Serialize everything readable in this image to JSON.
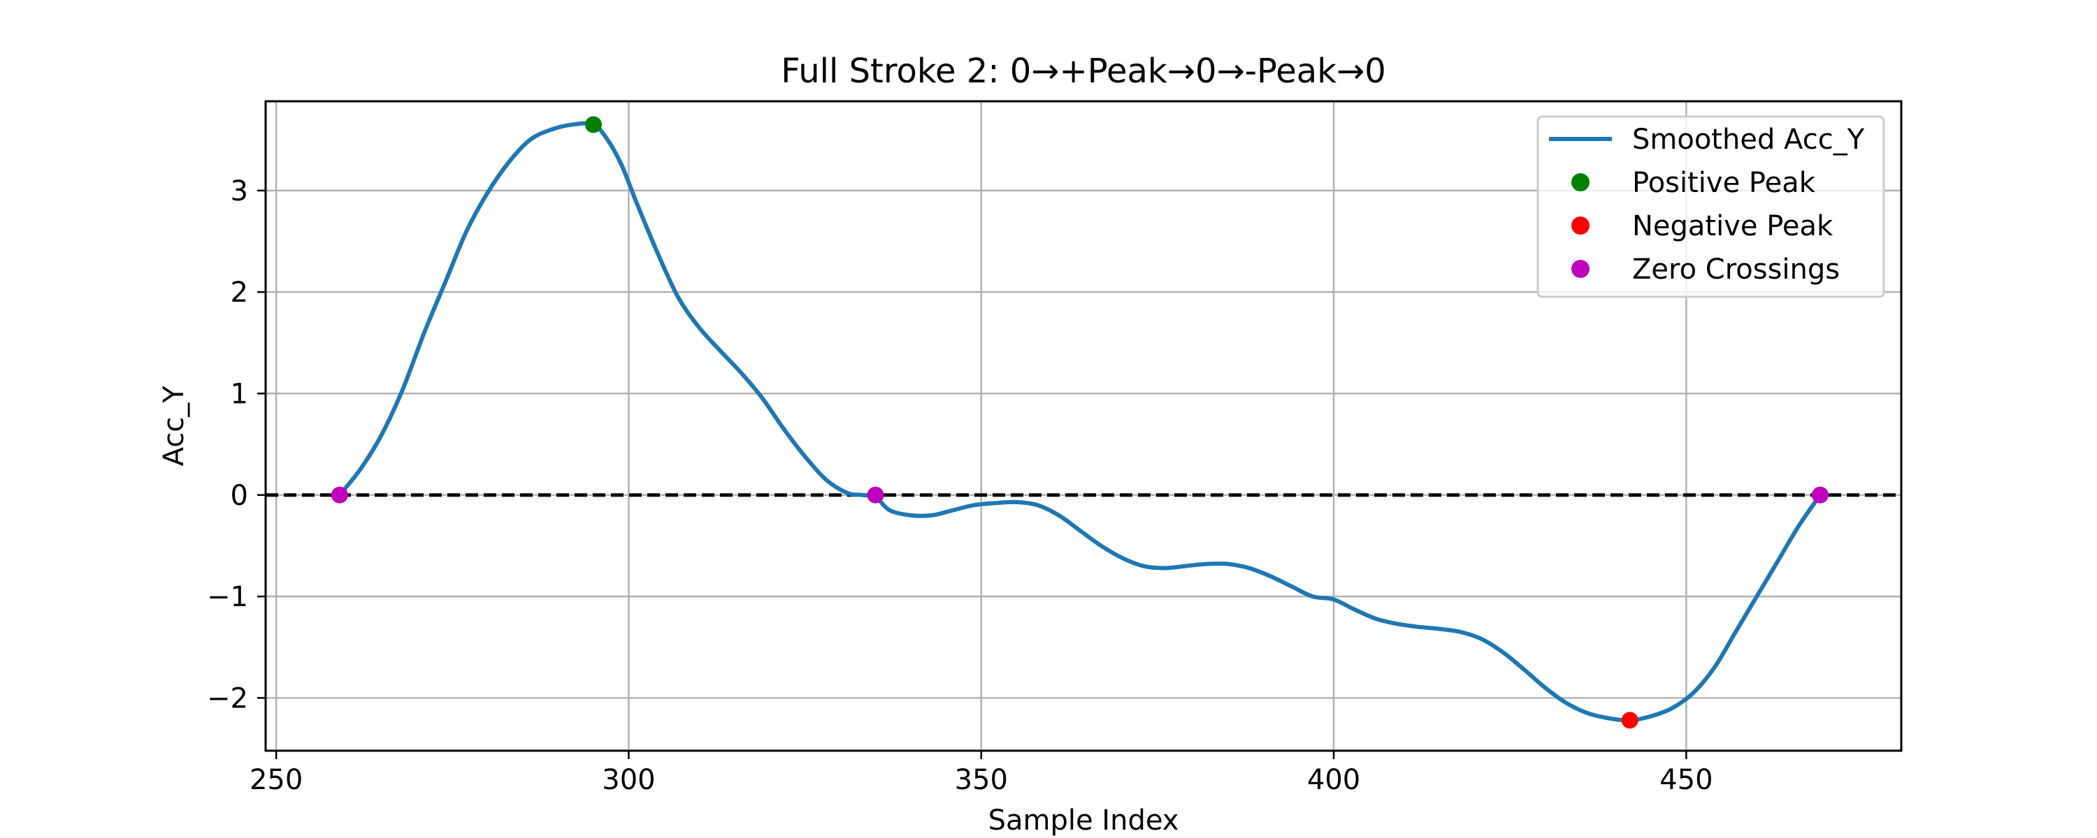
{
  "chart_data": {
    "type": "line",
    "title": "Full Stroke 2: 0→+Peak→0→-Peak→0",
    "xlabel": "Sample Index",
    "ylabel": "Acc_Y",
    "xlim": [
      248.5,
      480.5
    ],
    "ylim": [
      -2.52,
      3.88
    ],
    "xticks": [
      250,
      300,
      350,
      400,
      450
    ],
    "yticks": [
      -2,
      -1,
      0,
      1,
      2,
      3
    ],
    "xtick_labels": [
      "250",
      "300",
      "350",
      "400",
      "450"
    ],
    "ytick_labels": [
      "−2",
      "−1",
      "0",
      "1",
      "2",
      "3"
    ],
    "grid": true,
    "legend_position": "top-right",
    "zero_line": {
      "y": 0,
      "style": "dashed",
      "color": "#000000"
    },
    "series": [
      {
        "name": "Smoothed Acc_Y",
        "kind": "line",
        "color": "#1f77b4",
        "x": [
          259,
          262,
          265,
          268,
          271,
          274,
          277,
          280,
          283,
          286,
          289,
          292,
          295,
          297,
          299,
          301,
          304,
          307,
          310,
          313,
          316,
          319,
          322,
          325,
          328,
          331,
          333,
          335,
          337,
          340,
          343,
          346,
          349,
          352,
          355,
          358,
          361,
          364,
          367,
          370,
          373,
          376,
          379,
          382,
          385,
          388,
          391,
          394,
          397,
          400,
          403,
          406,
          409,
          412,
          415,
          418,
          421,
          424,
          427,
          430,
          433,
          436,
          439,
          442,
          445,
          448,
          451,
          454,
          457,
          460,
          463,
          466,
          469
        ],
        "y": [
          0.0,
          0.26,
          0.6,
          1.05,
          1.6,
          2.1,
          2.6,
          2.98,
          3.28,
          3.5,
          3.6,
          3.65,
          3.65,
          3.5,
          3.25,
          2.9,
          2.4,
          1.95,
          1.65,
          1.42,
          1.2,
          0.95,
          0.65,
          0.38,
          0.15,
          0.02,
          0.0,
          -0.02,
          -0.15,
          -0.2,
          -0.2,
          -0.15,
          -0.1,
          -0.08,
          -0.07,
          -0.1,
          -0.2,
          -0.35,
          -0.5,
          -0.62,
          -0.7,
          -0.72,
          -0.7,
          -0.68,
          -0.68,
          -0.72,
          -0.8,
          -0.9,
          -1.0,
          -1.03,
          -1.13,
          -1.22,
          -1.27,
          -1.3,
          -1.32,
          -1.35,
          -1.42,
          -1.55,
          -1.72,
          -1.9,
          -2.05,
          -2.15,
          -2.2,
          -2.22,
          -2.18,
          -2.1,
          -1.95,
          -1.7,
          -1.35,
          -1.0,
          -0.65,
          -0.3,
          0.0
        ]
      },
      {
        "name": "Positive Peak",
        "kind": "points",
        "color": "#008000",
        "points": [
          {
            "x": 295,
            "y": 3.65
          }
        ]
      },
      {
        "name": "Negative Peak",
        "kind": "points",
        "color": "#ff0000",
        "points": [
          {
            "x": 442,
            "y": -2.22
          }
        ]
      },
      {
        "name": "Zero Crossings",
        "kind": "points",
        "color": "#bf00bf",
        "points": [
          {
            "x": 259,
            "y": 0
          },
          {
            "x": 335,
            "y": 0
          },
          {
            "x": 469,
            "y": 0
          }
        ]
      }
    ]
  }
}
